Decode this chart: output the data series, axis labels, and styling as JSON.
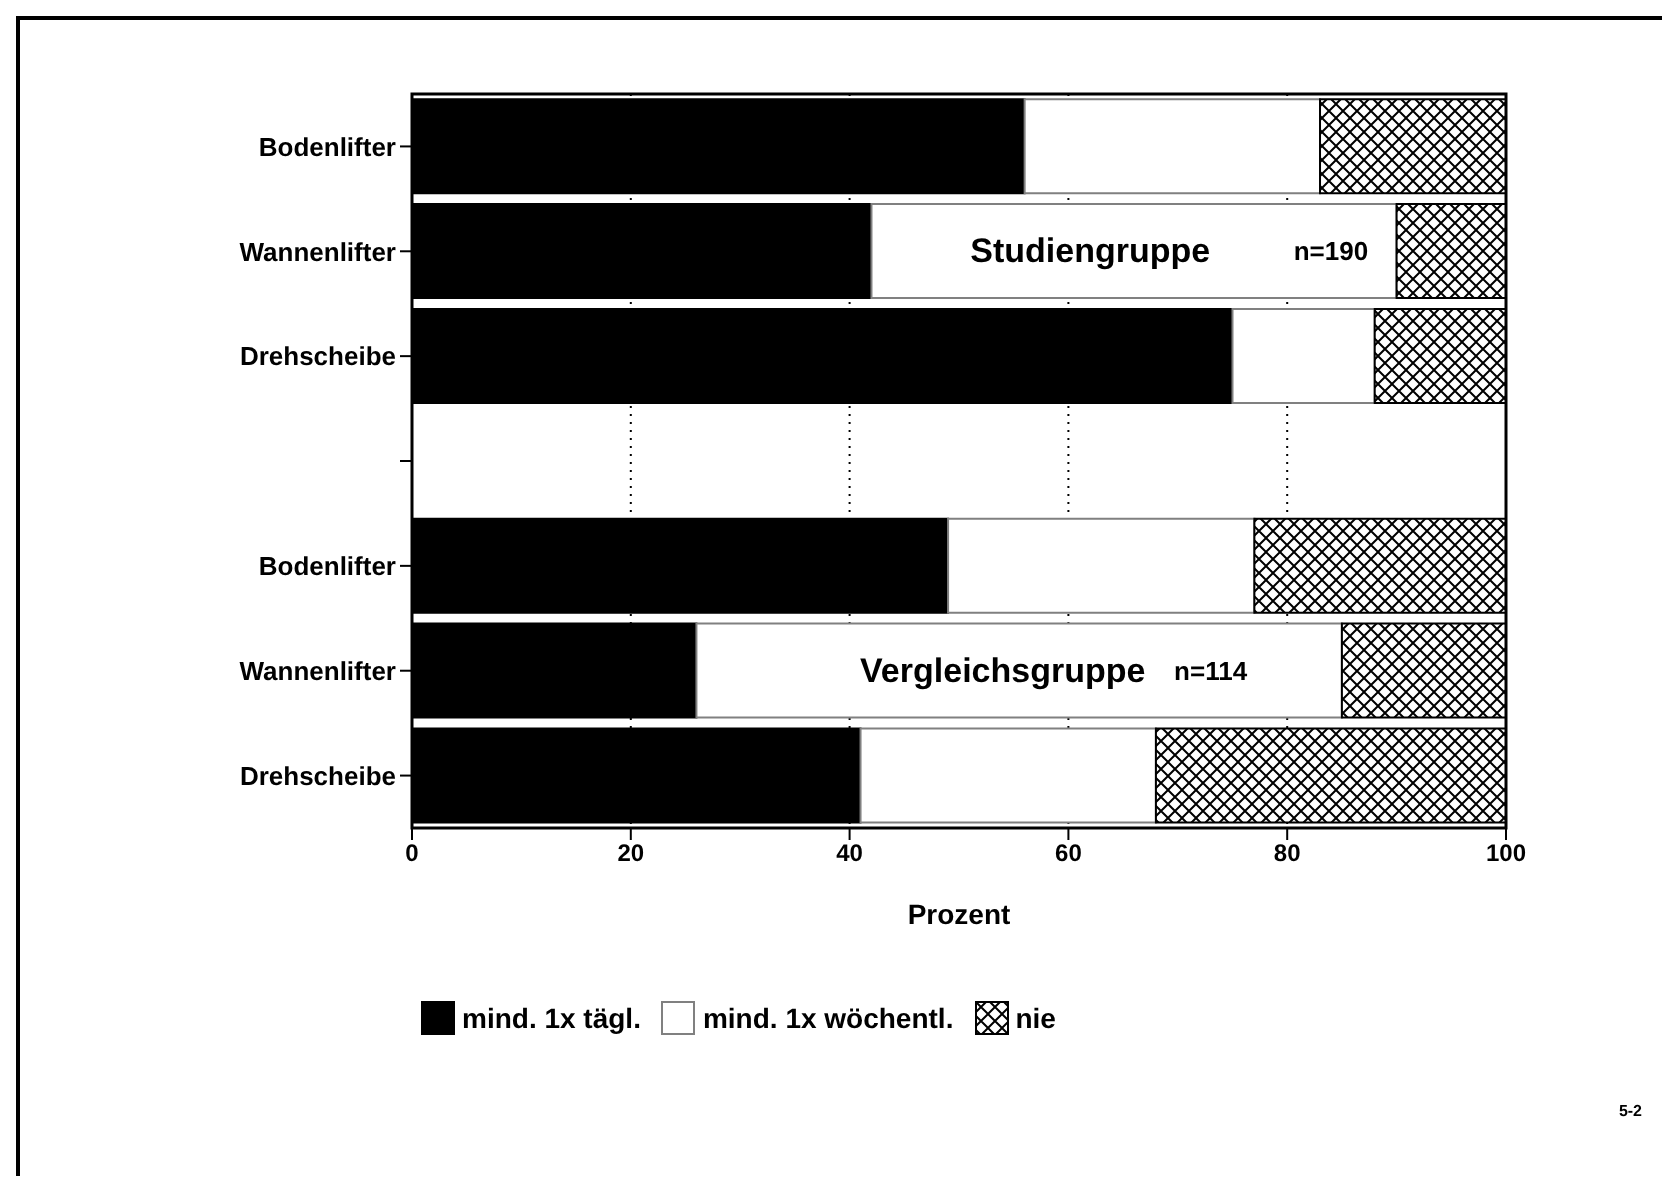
{
  "chart_data": {
    "type": "bar",
    "orientation": "horizontal",
    "stacked": true,
    "xlabel": "Prozent",
    "categories": [
      "Bodenlifter",
      "Wannenlifter",
      "Drehscheibe",
      null,
      "Bodenlifter",
      "Wannenlifter",
      "Drehscheibe"
    ],
    "series": [
      {
        "name": "mind. 1x tägl.",
        "color": "#000000",
        "values": [
          56,
          42,
          75,
          null,
          49,
          26,
          41
        ]
      },
      {
        "name": "mind. 1x wöchentl.",
        "color": "#ffffff",
        "values": [
          27,
          48,
          13,
          null,
          28,
          59,
          27
        ]
      },
      {
        "name": "nie",
        "color": "#000000",
        "values": [
          17,
          10,
          12,
          null,
          23,
          15,
          32
        ]
      }
    ],
    "xlim": [
      0,
      100
    ],
    "xticks": [
      0,
      20,
      40,
      60,
      80,
      100
    ],
    "grid": "x",
    "legend": "bottom",
    "annotations": [
      "Studiengruppe",
      "n=190",
      "Vergleichsgruppe",
      "n=114",
      "5-2"
    ]
  }
}
